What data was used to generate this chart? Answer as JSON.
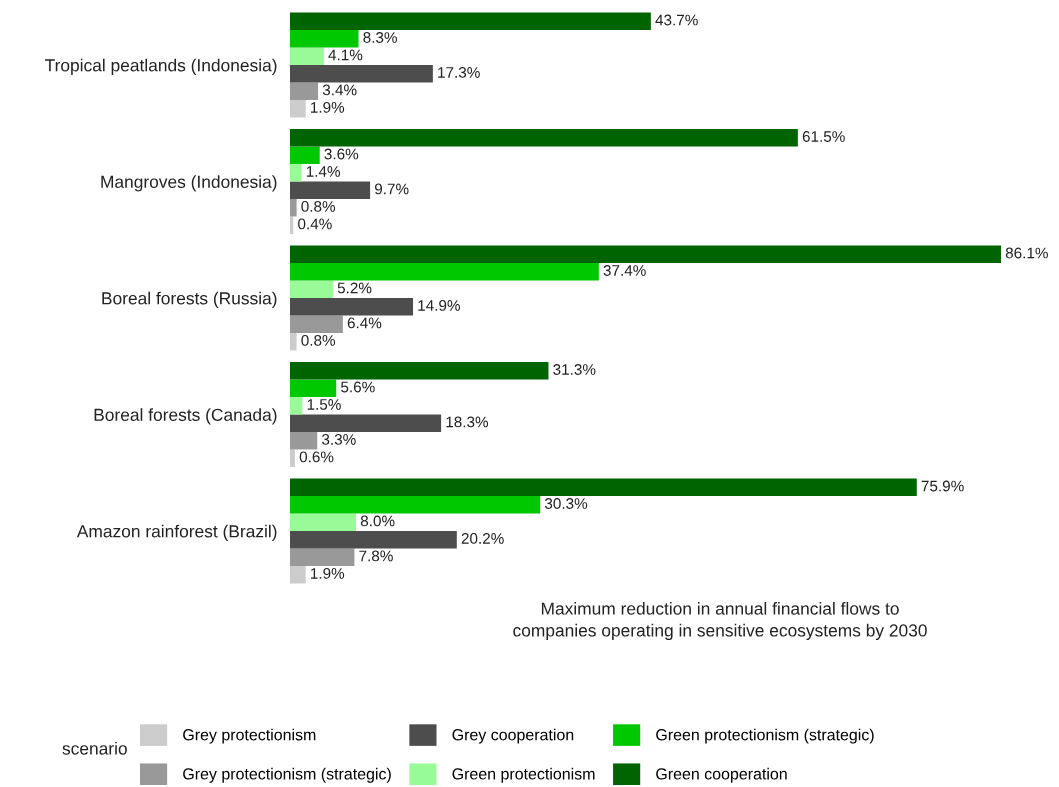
{
  "chart_data": {
    "type": "bar",
    "orientation": "horizontal",
    "categories": [
      "Tropical peatlands (Indonesia)",
      "Mangroves (Indonesia)",
      "Boreal forests (Russia)",
      "Boreal forests (Canada)",
      "Amazon rainforest (Brazil)"
    ],
    "series": [
      {
        "name": "Grey protectionism",
        "color": "#cccccc",
        "values": [
          1.9,
          0.4,
          0.8,
          0.6,
          1.9
        ],
        "value_labels": [
          "1.9%",
          "0.4%",
          "0.8%",
          "0.6%",
          "1.9%"
        ]
      },
      {
        "name": "Grey protectionism (strategic)",
        "color": "#999999",
        "values": [
          3.4,
          0.8,
          6.4,
          3.3,
          7.8
        ],
        "value_labels": [
          "3.4%",
          "0.8%",
          "6.4%",
          "3.3%",
          "7.8%"
        ]
      },
      {
        "name": "Grey cooperation",
        "color": "#4d4d4d",
        "values": [
          17.3,
          9.7,
          14.9,
          18.3,
          20.2
        ],
        "value_labels": [
          "17.3%",
          "9.7%",
          "14.9%",
          "18.3%",
          "20.2%"
        ]
      },
      {
        "name": "Green protectionism",
        "color": "#98fb98",
        "values": [
          4.1,
          1.4,
          5.2,
          1.5,
          8.0
        ],
        "value_labels": [
          "4.1%",
          "1.4%",
          "5.2%",
          "1.5%",
          "8.0%"
        ]
      },
      {
        "name": "Green protectionism (strategic)",
        "color": "#00c800",
        "values": [
          8.3,
          3.6,
          37.4,
          5.6,
          30.3
        ],
        "value_labels": [
          "8.3%",
          "3.6%",
          "37.4%",
          "5.6%",
          "30.3%"
        ]
      },
      {
        "name": "Green cooperation",
        "color": "#006400",
        "values": [
          43.7,
          61.5,
          86.1,
          31.3,
          75.9
        ],
        "value_labels": [
          "43.7%",
          "61.5%",
          "86.1%",
          "31.3%",
          "75.9%"
        ]
      }
    ],
    "xlabel": "Maximum reduction in annual financial flows to\ncompanies operating in sensitive ecosystems by 2030",
    "legend_title": "scenario",
    "legend": "bottom",
    "grid": false,
    "tick_labels": "y"
  }
}
